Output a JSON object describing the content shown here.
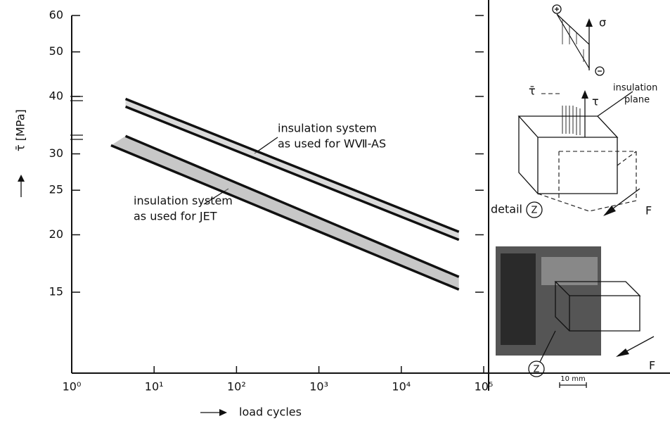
{
  "chart_data": {
    "type": "line",
    "y_label": "τ̄ [MPa]",
    "x_label": "load cycles",
    "log_x": true,
    "log_y": true,
    "xlim": [
      1,
      100000
    ],
    "ylim": [
      10,
      60
    ],
    "xticks": [
      {
        "value": 1,
        "label": "10⁰"
      },
      {
        "value": 10,
        "label": "10¹"
      },
      {
        "value": 100,
        "label": "10²"
      },
      {
        "value": 1000,
        "label": "10³"
      },
      {
        "value": 10000,
        "label": "10⁴"
      },
      {
        "value": 100000,
        "label": "10⁵"
      }
    ],
    "yticks": [
      15,
      20,
      25,
      30,
      40,
      50,
      60
    ],
    "series": [
      {
        "color": "#111111",
        "x": [
          4.5,
          50000
        ],
        "values": [
          39.5,
          20.3
        ]
      },
      {
        "color": "#111111",
        "x": [
          4.5,
          50000
        ],
        "values": [
          38,
          19.5
        ]
      },
      {
        "color": "#111111",
        "x": [
          4.5,
          50000
        ],
        "values": [
          32.8,
          16.2
        ]
      },
      {
        "color": "#111111",
        "x": [
          3,
          50000
        ],
        "values": [
          31.3,
          15.2
        ]
      }
    ],
    "annotations": [
      {
        "lines": [
          "insulation system",
          "as used for WⅦ-AS"
        ]
      },
      {
        "lines": [
          "insulation system",
          "as used for JET"
        ]
      }
    ]
  },
  "inset": {
    "sigma": "σ",
    "tau": "τ",
    "tau_bar": "τ̄",
    "plane_label": [
      "insulation",
      "plane"
    ],
    "detail": "detail",
    "detail_mark": "Z",
    "force_top": "F",
    "force_bottom": "F",
    "photo_mark": "Z",
    "scale": "10 mm"
  }
}
